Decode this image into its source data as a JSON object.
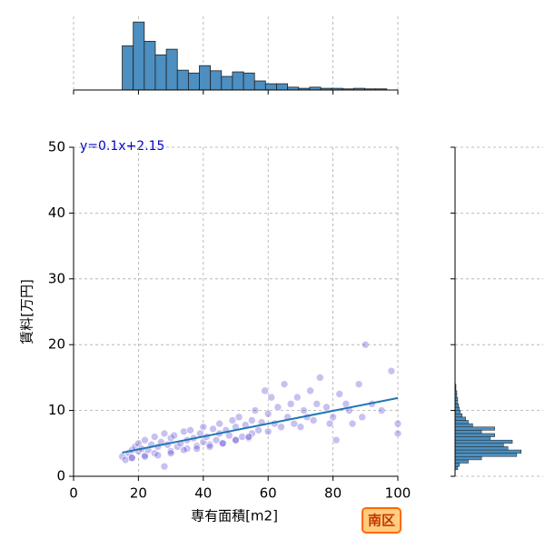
{
  "chart_data": {
    "type": "scatter",
    "xlabel": "専有面積[m2]",
    "ylabel": "賃料[万円]",
    "annotation": "y=0.1x+2.15",
    "badge": "南区",
    "xlim": [
      0,
      100
    ],
    "ylim": [
      0,
      50
    ],
    "xticks": [
      0,
      20,
      40,
      60,
      80,
      100
    ],
    "yticks": [
      0,
      10,
      20,
      30,
      40,
      50
    ],
    "grid": true,
    "color": "#4433cc",
    "line_color": "#1f77b4",
    "hist_color": "#4c8fc0",
    "x": [
      15,
      16,
      17,
      18,
      18,
      19,
      20,
      20,
      21,
      22,
      22,
      23,
      24,
      25,
      25,
      26,
      27,
      28,
      28,
      29,
      30,
      30,
      31,
      32,
      33,
      34,
      35,
      35,
      36,
      37,
      38,
      39,
      40,
      40,
      41,
      42,
      43,
      44,
      45,
      45,
      46,
      47,
      48,
      49,
      50,
      50,
      51,
      52,
      53,
      54,
      55,
      55,
      56,
      57,
      58,
      59,
      60,
      60,
      61,
      62,
      63,
      64,
      65,
      66,
      67,
      68,
      69,
      70,
      71,
      72,
      73,
      74,
      75,
      76,
      78,
      79,
      80,
      81,
      82,
      84,
      85,
      86,
      88,
      89,
      90,
      92,
      95,
      98,
      100,
      100,
      18,
      22,
      26,
      30,
      34,
      38,
      42,
      46,
      50,
      54
    ],
    "y": [
      3,
      2.5,
      3.5,
      4,
      2.8,
      4.5,
      3.8,
      5,
      4.2,
      3.2,
      5.5,
      4,
      4.8,
      3.5,
      6,
      4.5,
      5.2,
      1.5,
      6.5,
      4.8,
      3.8,
      5.8,
      6.2,
      4.5,
      5,
      6.8,
      4.2,
      5.5,
      7,
      5.8,
      4.6,
      6.5,
      5.2,
      7.5,
      6,
      4.8,
      7.2,
      5.5,
      6.5,
      8,
      5,
      7,
      6.2,
      8.5,
      5.5,
      7.5,
      9,
      6,
      7.8,
      5.8,
      8.5,
      6.5,
      10,
      7,
      8.2,
      13,
      6.8,
      9.5,
      12,
      8,
      10.5,
      7.5,
      14,
      9,
      11,
      8,
      12,
      7.5,
      10,
      9,
      13,
      8.5,
      11,
      15,
      10.5,
      8,
      9,
      5.5,
      12.5,
      11,
      10,
      8,
      14,
      9,
      20,
      11,
      10,
      16,
      8,
      6.5,
      2.8,
      3,
      3.2,
      3.5,
      4,
      4.2,
      4.5,
      5,
      5.5,
      6
    ],
    "fit_line": {
      "x": [
        15,
        100
      ],
      "y": [
        3.6,
        11.9
      ]
    },
    "x_hist": {
      "bins": [
        15,
        18.4,
        21.8,
        25.2,
        28.6,
        32,
        35.4,
        38.8,
        42.2,
        45.6,
        49,
        52.4,
        55.8,
        59.2,
        62.6,
        66,
        69.4,
        72.8,
        76.2,
        79.6,
        83,
        86.4,
        89.8,
        93.2,
        96.6,
        100
      ],
      "counts": [
        78,
        120,
        86,
        62,
        72,
        35,
        30,
        43,
        34,
        24,
        32,
        30,
        16,
        11,
        11,
        5,
        3,
        5,
        3,
        3,
        2,
        3,
        2,
        2,
        0
      ],
      "ylim": [
        0,
        130
      ]
    },
    "y_hist": {
      "bins": [
        1,
        1.5,
        2,
        2.5,
        3,
        3.5,
        4,
        4.5,
        5,
        5.5,
        6,
        6.5,
        7,
        7.5,
        8,
        8.5,
        9,
        9.5,
        10,
        10.5,
        11,
        11.5,
        12,
        12.5,
        13,
        13.5,
        14
      ],
      "counts": [
        3,
        5,
        15,
        30,
        70,
        75,
        60,
        55,
        65,
        40,
        45,
        30,
        45,
        20,
        15,
        12,
        8,
        6,
        5,
        4,
        3,
        3,
        2,
        2,
        1,
        1
      ],
      "xlim": [
        0,
        100
      ]
    }
  }
}
